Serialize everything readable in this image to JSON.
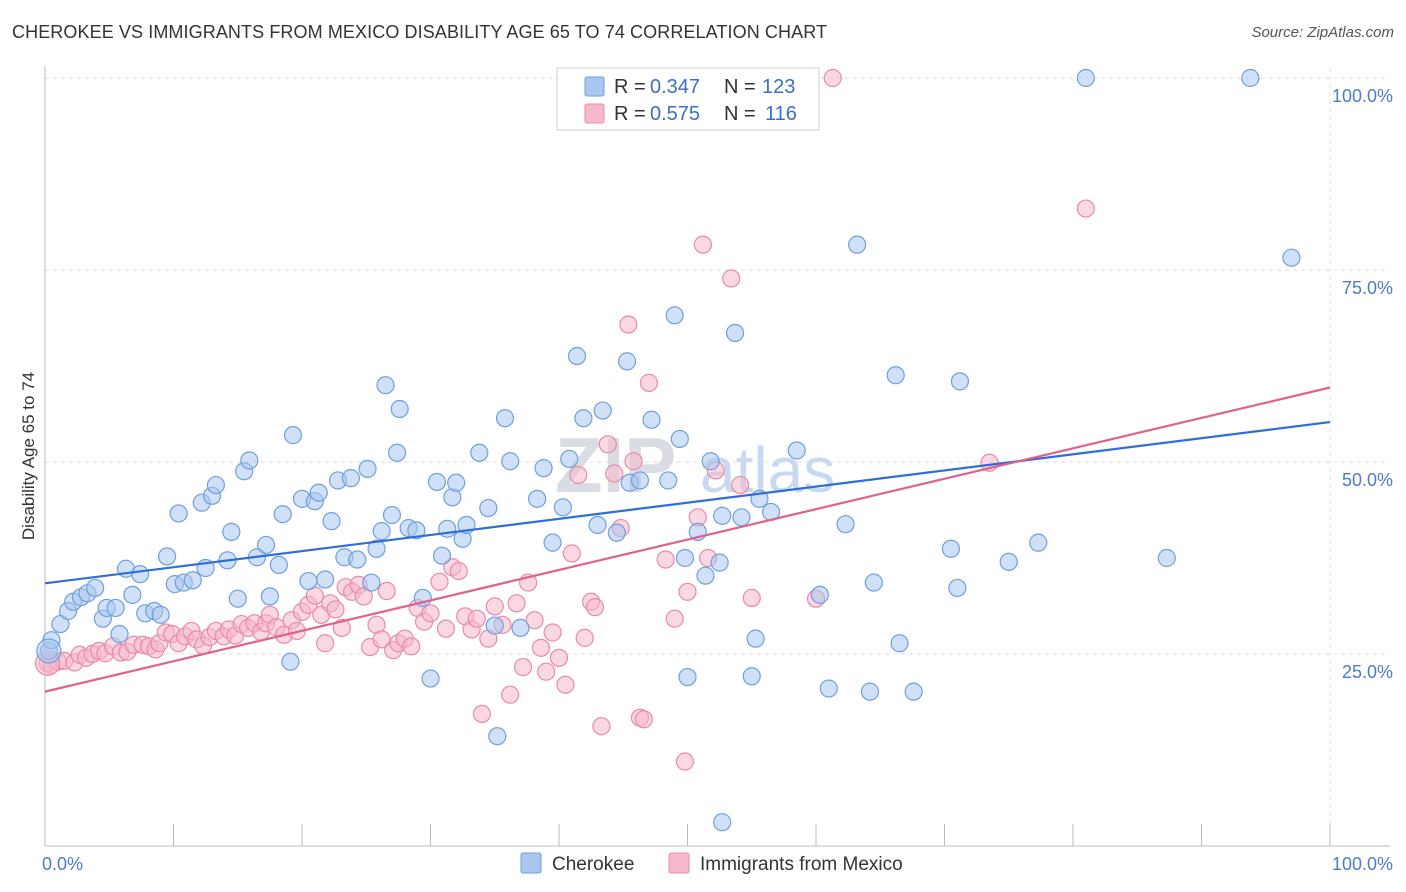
{
  "title": "CHEROKEE VS IMMIGRANTS FROM MEXICO DISABILITY AGE 65 TO 74 CORRELATION CHART",
  "source": "Source: ZipAtlas.com",
  "watermark": {
    "part1": "ZIP",
    "part2": "atlas"
  },
  "colors": {
    "blue_fill": "#a9c6ee",
    "blue_stroke": "#6f9fde",
    "blue_line": "#2f6fd0",
    "pink_fill": "#f5b8cc",
    "pink_stroke": "#e98aa8",
    "pink_line": "#e0628c",
    "grid": "#dddddd",
    "axis_text": "#4a7cc7"
  },
  "legend": {
    "rows": [
      {
        "r_label": "R =",
        "r_value": "0.347",
        "n_label": "N =",
        "n_value": "123"
      },
      {
        "r_label": "R =",
        "r_value": "0.575",
        "n_label": "N =",
        "n_value": "116"
      }
    ]
  },
  "bottom_legend": [
    "Cherokee",
    "Immigrants from Mexico"
  ],
  "chart_data": {
    "type": "scatter",
    "title": "CHEROKEE VS IMMIGRANTS FROM MEXICO DISABILITY AGE 65 TO 74 CORRELATION CHART",
    "xlabel": "",
    "ylabel": "Disability Age 65 to 74",
    "xlim": [
      0,
      100
    ],
    "ylim": [
      0,
      100
    ],
    "x_tick_labels": [
      "0.0%",
      "100.0%"
    ],
    "y_tick_labels": [
      "25.0%",
      "50.0%",
      "75.0%",
      "100.0%"
    ],
    "y_ticks": [
      25,
      50,
      75,
      100
    ],
    "grid": true,
    "legend_position": "top-center",
    "series": [
      {
        "name": "Cherokee",
        "color": "#a9c6ee",
        "trend": {
          "x": [
            0,
            100
          ],
          "y": [
            34.2,
            55.2
          ]
        },
        "points": [
          [
            0.3,
            25.4
          ],
          [
            0.5,
            26.8
          ],
          [
            1.2,
            28.9
          ],
          [
            1.8,
            30.6
          ],
          [
            2.2,
            31.8
          ],
          [
            2.8,
            32.4
          ],
          [
            3.3,
            32.9
          ],
          [
            3.9,
            33.6
          ],
          [
            4.5,
            29.6
          ],
          [
            4.8,
            31.0
          ],
          [
            5.5,
            31.0
          ],
          [
            5.8,
            27.6
          ],
          [
            6.3,
            36.1
          ],
          [
            6.8,
            32.7
          ],
          [
            7.4,
            35.4
          ],
          [
            7.8,
            30.3
          ],
          [
            8.5,
            30.6
          ],
          [
            9.0,
            30.1
          ],
          [
            9.5,
            37.7
          ],
          [
            10.1,
            34.1
          ],
          [
            10.4,
            43.3
          ],
          [
            10.8,
            34.3
          ],
          [
            11.5,
            34.6
          ],
          [
            12.2,
            44.7
          ],
          [
            12.5,
            36.2
          ],
          [
            13.0,
            45.6
          ],
          [
            13.3,
            47.0
          ],
          [
            14.2,
            37.2
          ],
          [
            14.5,
            40.9
          ],
          [
            15.0,
            32.2
          ],
          [
            15.5,
            48.8
          ],
          [
            15.9,
            50.2
          ],
          [
            16.5,
            37.6
          ],
          [
            17.2,
            39.2
          ],
          [
            17.5,
            32.5
          ],
          [
            18.2,
            36.6
          ],
          [
            18.5,
            43.2
          ],
          [
            19.1,
            24.0
          ],
          [
            19.3,
            53.5
          ],
          [
            20.0,
            45.2
          ],
          [
            20.5,
            34.5
          ],
          [
            21.0,
            44.9
          ],
          [
            21.3,
            46.0
          ],
          [
            21.8,
            34.7
          ],
          [
            22.3,
            42.3
          ],
          [
            22.8,
            47.6
          ],
          [
            23.3,
            37.6
          ],
          [
            23.8,
            47.9
          ],
          [
            24.3,
            37.3
          ],
          [
            25.1,
            49.1
          ],
          [
            25.4,
            34.3
          ],
          [
            25.8,
            38.7
          ],
          [
            26.2,
            41.0
          ],
          [
            26.5,
            60.0
          ],
          [
            27.0,
            43.1
          ],
          [
            27.4,
            51.2
          ],
          [
            27.6,
            56.9
          ],
          [
            28.3,
            41.4
          ],
          [
            28.9,
            41.1
          ],
          [
            29.4,
            32.3
          ],
          [
            30.0,
            21.8
          ],
          [
            30.5,
            47.4
          ],
          [
            30.9,
            37.8
          ],
          [
            31.3,
            41.3
          ],
          [
            31.7,
            45.4
          ],
          [
            32.0,
            47.3
          ],
          [
            32.5,
            40.0
          ],
          [
            32.8,
            41.8
          ],
          [
            33.8,
            51.2
          ],
          [
            34.5,
            44.0
          ],
          [
            35.0,
            28.7
          ],
          [
            35.2,
            14.3
          ],
          [
            35.8,
            55.7
          ],
          [
            36.2,
            50.1
          ],
          [
            37.0,
            28.4
          ],
          [
            38.3,
            45.2
          ],
          [
            38.8,
            49.2
          ],
          [
            39.5,
            39.5
          ],
          [
            40.3,
            44.1
          ],
          [
            40.8,
            50.4
          ],
          [
            41.4,
            63.8
          ],
          [
            41.9,
            55.7
          ],
          [
            43.0,
            41.8
          ],
          [
            43.4,
            56.7
          ],
          [
            44.5,
            40.8
          ],
          [
            45.3,
            63.1
          ],
          [
            45.5,
            47.3
          ],
          [
            46.3,
            47.6
          ],
          [
            47.2,
            55.5
          ],
          [
            48.5,
            47.6
          ],
          [
            49.0,
            69.1
          ],
          [
            49.4,
            53.0
          ],
          [
            49.8,
            37.5
          ],
          [
            50.0,
            22.0
          ],
          [
            50.8,
            40.9
          ],
          [
            51.4,
            35.2
          ],
          [
            51.8,
            50.1
          ],
          [
            52.5,
            36.9
          ],
          [
            52.7,
            43.0
          ],
          [
            52.7,
            3.1
          ],
          [
            53.7,
            66.8
          ],
          [
            54.2,
            42.8
          ],
          [
            55.0,
            22.1
          ],
          [
            55.3,
            27.0
          ],
          [
            55.6,
            45.2
          ],
          [
            56.5,
            43.5
          ],
          [
            58.5,
            51.5
          ],
          [
            60.3,
            32.7
          ],
          [
            61.0,
            20.5
          ],
          [
            62.3,
            41.9
          ],
          [
            63.2,
            78.3
          ],
          [
            64.2,
            20.1
          ],
          [
            64.5,
            34.3
          ],
          [
            66.2,
            61.3
          ],
          [
            66.5,
            26.4
          ],
          [
            67.6,
            20.1
          ],
          [
            70.5,
            38.7
          ],
          [
            71.0,
            33.6
          ],
          [
            71.2,
            60.5
          ],
          [
            75.0,
            37.0
          ],
          [
            77.3,
            39.5
          ],
          [
            81.0,
            100.0
          ],
          [
            87.3,
            37.5
          ],
          [
            93.8,
            100.0
          ],
          [
            97.0,
            76.6
          ]
        ]
      },
      {
        "name": "Immigrants from Mexico",
        "color": "#f5b8cc",
        "trend": {
          "x": [
            0,
            100
          ],
          "y": [
            20.1,
            59.7
          ]
        },
        "points": [
          [
            0.2,
            23.8
          ],
          [
            0.5,
            23.6
          ],
          [
            1.0,
            24.0
          ],
          [
            1.5,
            24.1
          ],
          [
            2.3,
            23.9
          ],
          [
            2.7,
            24.9
          ],
          [
            3.2,
            24.5
          ],
          [
            3.7,
            25.0
          ],
          [
            4.2,
            25.4
          ],
          [
            4.7,
            25.1
          ],
          [
            5.3,
            26.0
          ],
          [
            5.9,
            25.2
          ],
          [
            6.4,
            25.3
          ],
          [
            6.9,
            26.2
          ],
          [
            7.6,
            26.2
          ],
          [
            8.1,
            26.0
          ],
          [
            8.6,
            25.6
          ],
          [
            8.9,
            26.4
          ],
          [
            9.4,
            27.8
          ],
          [
            9.9,
            27.6
          ],
          [
            10.4,
            26.4
          ],
          [
            10.9,
            27.3
          ],
          [
            11.4,
            28.0
          ],
          [
            11.8,
            26.9
          ],
          [
            12.3,
            26.1
          ],
          [
            12.8,
            27.2
          ],
          [
            13.3,
            28.0
          ],
          [
            13.9,
            27.3
          ],
          [
            14.3,
            28.2
          ],
          [
            14.8,
            27.4
          ],
          [
            15.3,
            28.9
          ],
          [
            15.8,
            28.4
          ],
          [
            16.3,
            29.0
          ],
          [
            16.8,
            27.9
          ],
          [
            17.2,
            29.0
          ],
          [
            17.5,
            30.1
          ],
          [
            18.0,
            28.5
          ],
          [
            18.6,
            27.5
          ],
          [
            19.2,
            29.4
          ],
          [
            19.6,
            28.0
          ],
          [
            20.0,
            30.5
          ],
          [
            20.5,
            31.4
          ],
          [
            21.0,
            32.6
          ],
          [
            21.5,
            30.1
          ],
          [
            21.8,
            26.4
          ],
          [
            22.2,
            31.6
          ],
          [
            22.6,
            30.8
          ],
          [
            23.1,
            28.4
          ],
          [
            23.4,
            33.7
          ],
          [
            23.9,
            33.1
          ],
          [
            24.4,
            34.0
          ],
          [
            24.8,
            32.5
          ],
          [
            25.3,
            25.9
          ],
          [
            25.8,
            28.8
          ],
          [
            26.2,
            26.9
          ],
          [
            26.6,
            33.2
          ],
          [
            27.1,
            25.5
          ],
          [
            27.5,
            26.4
          ],
          [
            28.0,
            27.0
          ],
          [
            28.5,
            26.0
          ],
          [
            29.0,
            31.0
          ],
          [
            29.5,
            29.2
          ],
          [
            30.0,
            30.3
          ],
          [
            30.7,
            34.4
          ],
          [
            31.2,
            28.3
          ],
          [
            31.7,
            36.3
          ],
          [
            32.2,
            35.8
          ],
          [
            32.7,
            29.9
          ],
          [
            33.2,
            28.2
          ],
          [
            33.6,
            29.6
          ],
          [
            34.0,
            17.2
          ],
          [
            34.5,
            27.0
          ],
          [
            35.0,
            31.2
          ],
          [
            35.6,
            28.8
          ],
          [
            36.2,
            19.7
          ],
          [
            36.7,
            31.6
          ],
          [
            37.2,
            23.3
          ],
          [
            37.6,
            34.3
          ],
          [
            38.1,
            29.4
          ],
          [
            38.6,
            25.8
          ],
          [
            39.0,
            22.7
          ],
          [
            39.5,
            27.8
          ],
          [
            40.0,
            24.5
          ],
          [
            40.5,
            21.0
          ],
          [
            41.0,
            38.1
          ],
          [
            41.5,
            48.3
          ],
          [
            42.0,
            27.1
          ],
          [
            42.5,
            31.8
          ],
          [
            42.8,
            31.1
          ],
          [
            43.3,
            15.6
          ],
          [
            43.8,
            52.3
          ],
          [
            44.3,
            48.5
          ],
          [
            44.8,
            41.4
          ],
          [
            45.4,
            67.9
          ],
          [
            45.8,
            50.1
          ],
          [
            46.3,
            16.7
          ],
          [
            46.6,
            16.5
          ],
          [
            47.0,
            60.3
          ],
          [
            48.3,
            37.3
          ],
          [
            49.0,
            29.6
          ],
          [
            49.8,
            11.0
          ],
          [
            50.0,
            33.1
          ],
          [
            50.8,
            42.8
          ],
          [
            51.2,
            78.3
          ],
          [
            51.6,
            37.5
          ],
          [
            52.2,
            48.9
          ],
          [
            53.4,
            73.9
          ],
          [
            54.1,
            47.0
          ],
          [
            55.0,
            32.3
          ],
          [
            60.0,
            32.2
          ],
          [
            61.3,
            100.0
          ],
          [
            73.5,
            49.9
          ],
          [
            81.0,
            83.0
          ]
        ]
      }
    ]
  }
}
